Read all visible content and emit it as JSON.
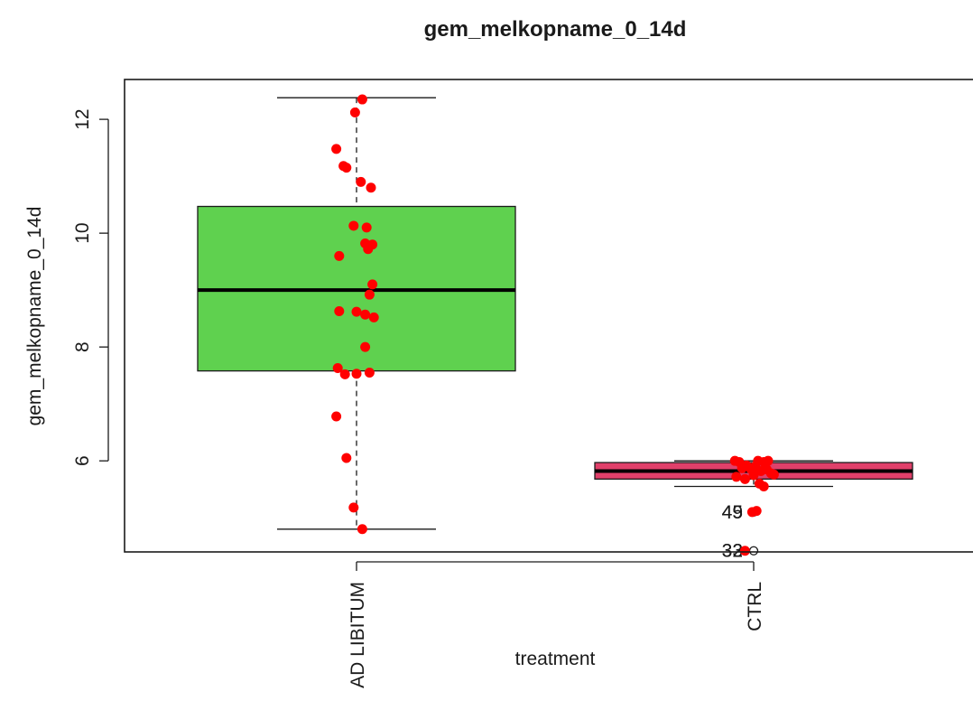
{
  "chart_data": {
    "type": "boxplot",
    "title": "gem_melkopname_0_14d",
    "xlabel": "treatment",
    "ylabel": "gem_melkopname_0_14d",
    "ylim": [
      4.4,
      12.7
    ],
    "yticks": [
      6,
      8,
      10,
      12
    ],
    "ytick_labels": [
      "6",
      "8",
      "10",
      "12"
    ],
    "categories": [
      "AD LIBITUM",
      "CTRL"
    ],
    "grid": false,
    "colors": {
      "box_fill": [
        "#5fd14f",
        "#e0406a"
      ],
      "points": "#ff0000",
      "median": "#000000",
      "frame": "#1a1a1a"
    },
    "boxes": [
      {
        "category": "AD LIBITUM",
        "whisker_low": 4.8,
        "q1": 7.58,
        "median": 9.0,
        "q3": 10.47,
        "whisker_high": 12.38,
        "outliers": []
      },
      {
        "category": "CTRL",
        "whisker_low": 5.55,
        "q1": 5.68,
        "median": 5.82,
        "q3": 5.97,
        "whisker_high": 6.0,
        "outliers": [
          {
            "value": 5.1,
            "label": "45"
          },
          {
            "value": 5.1,
            "label": "49"
          },
          {
            "value": 4.42,
            "label": "32"
          },
          {
            "value": 4.42,
            "label": "33"
          }
        ]
      }
    ],
    "points": [
      {
        "category": "AD LIBITUM",
        "jitter": 0.04,
        "value": 12.35
      },
      {
        "category": "AD LIBITUM",
        "jitter": -0.01,
        "value": 12.12
      },
      {
        "category": "AD LIBITUM",
        "jitter": -0.14,
        "value": 11.48
      },
      {
        "category": "AD LIBITUM",
        "jitter": -0.09,
        "value": 11.18
      },
      {
        "category": "AD LIBITUM",
        "jitter": -0.07,
        "value": 11.15
      },
      {
        "category": "AD LIBITUM",
        "jitter": 0.03,
        "value": 10.9
      },
      {
        "category": "AD LIBITUM",
        "jitter": 0.1,
        "value": 10.8
      },
      {
        "category": "AD LIBITUM",
        "jitter": -0.02,
        "value": 10.13
      },
      {
        "category": "AD LIBITUM",
        "jitter": 0.07,
        "value": 10.1
      },
      {
        "category": "AD LIBITUM",
        "jitter": 0.06,
        "value": 9.82
      },
      {
        "category": "AD LIBITUM",
        "jitter": 0.11,
        "value": 9.8
      },
      {
        "category": "AD LIBITUM",
        "jitter": 0.08,
        "value": 9.72
      },
      {
        "category": "AD LIBITUM",
        "jitter": -0.12,
        "value": 9.6
      },
      {
        "category": "AD LIBITUM",
        "jitter": 0.11,
        "value": 9.1
      },
      {
        "category": "AD LIBITUM",
        "jitter": 0.09,
        "value": 8.92
      },
      {
        "category": "AD LIBITUM",
        "jitter": -0.12,
        "value": 8.63
      },
      {
        "category": "AD LIBITUM",
        "jitter": 0.0,
        "value": 8.62
      },
      {
        "category": "AD LIBITUM",
        "jitter": 0.06,
        "value": 8.57
      },
      {
        "category": "AD LIBITUM",
        "jitter": 0.12,
        "value": 8.52
      },
      {
        "category": "AD LIBITUM",
        "jitter": 0.06,
        "value": 8.0
      },
      {
        "category": "AD LIBITUM",
        "jitter": -0.13,
        "value": 7.63
      },
      {
        "category": "AD LIBITUM",
        "jitter": -0.08,
        "value": 7.52
      },
      {
        "category": "AD LIBITUM",
        "jitter": 0.0,
        "value": 7.53
      },
      {
        "category": "AD LIBITUM",
        "jitter": 0.09,
        "value": 7.55
      },
      {
        "category": "AD LIBITUM",
        "jitter": -0.14,
        "value": 6.78
      },
      {
        "category": "AD LIBITUM",
        "jitter": -0.07,
        "value": 6.05
      },
      {
        "category": "AD LIBITUM",
        "jitter": -0.02,
        "value": 5.18
      },
      {
        "category": "AD LIBITUM",
        "jitter": 0.04,
        "value": 4.8
      },
      {
        "category": "CTRL",
        "jitter": -0.13,
        "value": 6.0
      },
      {
        "category": "CTRL",
        "jitter": -0.1,
        "value": 5.98
      },
      {
        "category": "CTRL",
        "jitter": -0.05,
        "value": 5.92
      },
      {
        "category": "CTRL",
        "jitter": 0.03,
        "value": 6.0
      },
      {
        "category": "CTRL",
        "jitter": 0.07,
        "value": 5.98
      },
      {
        "category": "CTRL",
        "jitter": 0.1,
        "value": 6.0
      },
      {
        "category": "CTRL",
        "jitter": -0.08,
        "value": 5.87
      },
      {
        "category": "CTRL",
        "jitter": -0.02,
        "value": 5.86
      },
      {
        "category": "CTRL",
        "jitter": 0.01,
        "value": 5.9
      },
      {
        "category": "CTRL",
        "jitter": 0.05,
        "value": 5.82
      },
      {
        "category": "CTRL",
        "jitter": 0.09,
        "value": 5.85
      },
      {
        "category": "CTRL",
        "jitter": 0.12,
        "value": 5.78
      },
      {
        "category": "CTRL",
        "jitter": -0.12,
        "value": 5.72
      },
      {
        "category": "CTRL",
        "jitter": -0.06,
        "value": 5.68
      },
      {
        "category": "CTRL",
        "jitter": 0.0,
        "value": 5.75
      },
      {
        "category": "CTRL",
        "jitter": 0.04,
        "value": 5.6
      },
      {
        "category": "CTRL",
        "jitter": 0.07,
        "value": 5.55
      },
      {
        "category": "CTRL",
        "jitter": 0.14,
        "value": 5.76
      },
      {
        "category": "CTRL",
        "jitter": -0.01,
        "value": 5.1
      },
      {
        "category": "CTRL",
        "jitter": 0.02,
        "value": 5.12
      },
      {
        "category": "CTRL",
        "jitter": -0.06,
        "value": 4.42
      }
    ]
  }
}
